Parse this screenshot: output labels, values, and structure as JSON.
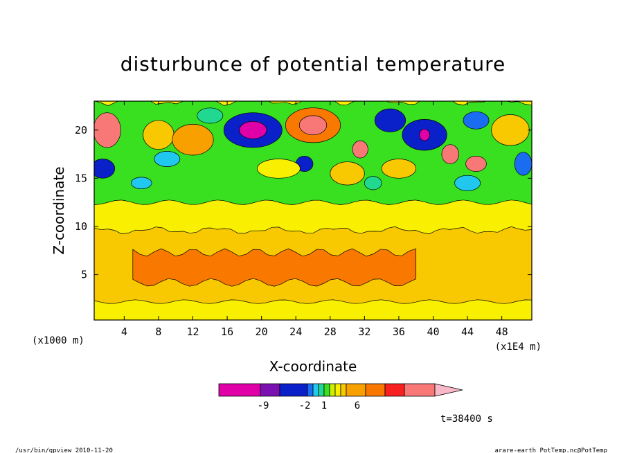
{
  "chart_data": {
    "type": "heatmap",
    "title": "disturbunce of potential temperature",
    "xlabel": "X-coordinate",
    "ylabel": "Z-coordinate",
    "x_unit_label": "(x1000 m)",
    "x_scale_label": "(x1E4 m)",
    "xlim": [
      0.5,
      51.5
    ],
    "ylim": [
      0.3,
      23
    ],
    "x_ticks": [
      4,
      8,
      12,
      16,
      20,
      24,
      28,
      32,
      36,
      40,
      44,
      48
    ],
    "y_ticks": [
      5,
      10,
      15,
      20
    ],
    "time_label": "t=38400 s",
    "colorbar": {
      "colors": [
        "#e000a8",
        "#7a10b0",
        "#0a20c8",
        "#1a6cf0",
        "#20c8f0",
        "#20d890",
        "#38e020",
        "#c8f000",
        "#f8f000",
        "#f8c800",
        "#f8a000",
        "#f87800",
        "#f82020",
        "#f87878",
        "#f8b8c8"
      ],
      "tick_labels": [
        "-9",
        "-2",
        "1",
        "6"
      ]
    },
    "bands": [
      {
        "name": "surface yellow layer",
        "z_range": [
          0.3,
          2.5
        ],
        "value_range": [
          1,
          2
        ],
        "color": "#f8f000"
      },
      {
        "name": "lower light orange layer",
        "z_range": [
          2.5,
          10
        ],
        "value_range": [
          2,
          4
        ],
        "color": "#f8c800"
      },
      {
        "name": "warm core",
        "x_range": [
          5,
          38
        ],
        "z_range": [
          4,
          7.5
        ],
        "value_range": [
          4,
          6
        ],
        "color": "#f8a000"
      },
      {
        "name": "mid yellow layer",
        "z_range": [
          9,
          13
        ],
        "value_range": [
          1,
          2
        ],
        "color": "#f8f000"
      },
      {
        "name": "upper green layer",
        "z_range": [
          13,
          17
        ],
        "value_range": [
          -1,
          1
        ],
        "color": "#38e020"
      },
      {
        "name": "turbulent top layer",
        "z_range": [
          15,
          23
        ],
        "value_range": [
          -9,
          6
        ],
        "color": "mixed"
      }
    ],
    "features": [
      {
        "kind": "cold",
        "x": 19,
        "z": 20,
        "value": -9
      },
      {
        "kind": "cold",
        "x": 35,
        "z": 21,
        "value": -6
      },
      {
        "kind": "cold",
        "x": 39,
        "z": 19.5,
        "value": -9
      },
      {
        "kind": "cold",
        "x": 1.5,
        "z": 16,
        "value": -6
      },
      {
        "kind": "cold",
        "x": 50.5,
        "z": 16.5,
        "value": -4
      },
      {
        "kind": "cold",
        "x": 25,
        "z": 16.5,
        "value": -6
      },
      {
        "kind": "warm",
        "x": 26,
        "z": 20.5,
        "value": 6
      },
      {
        "kind": "warm",
        "x": 2,
        "z": 20,
        "value": 6
      },
      {
        "kind": "warm",
        "x": 31.5,
        "z": 18,
        "value": 6
      },
      {
        "kind": "warm",
        "x": 42,
        "z": 17.5,
        "value": 6
      },
      {
        "kind": "warm",
        "x": 45,
        "z": 16.5,
        "value": 6
      }
    ]
  },
  "footer": {
    "left": "/usr/bin/gpview  2010-11-20",
    "right": "arare-earth_PotTemp.nc@PotTemp"
  }
}
